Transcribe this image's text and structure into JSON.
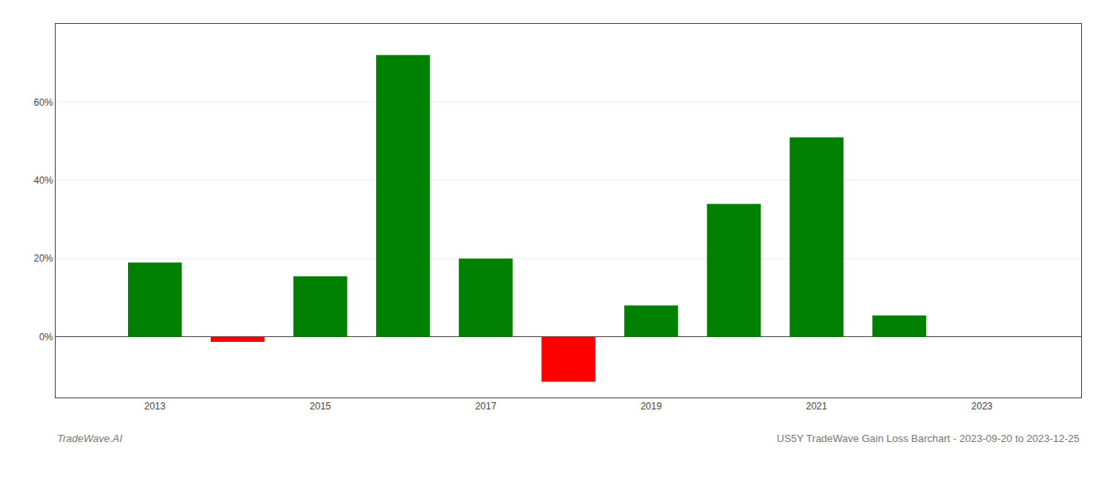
{
  "chart_data": {
    "type": "bar",
    "x": [
      2013,
      2014,
      2015,
      2016,
      2017,
      2018,
      2019,
      2020,
      2021,
      2022
    ],
    "values": [
      0.19,
      -0.013,
      0.155,
      0.72,
      0.2,
      -0.115,
      0.08,
      0.34,
      0.51,
      0.055
    ],
    "colors": [
      "#008000",
      "#ff0000",
      "#008000",
      "#008000",
      "#008000",
      "#ff0000",
      "#008000",
      "#008000",
      "#008000",
      "#008000"
    ],
    "xlim": [
      2011.8,
      2024.2
    ],
    "xticks": [
      2013,
      2015,
      2017,
      2019,
      2021,
      2023
    ],
    "ylim": [
      -0.155,
      0.8
    ],
    "yticks": [
      {
        "value": 0.0,
        "label": "0%"
      },
      {
        "value": 0.2,
        "label": "20%"
      },
      {
        "value": 0.4,
        "label": "40%"
      },
      {
        "value": 0.6,
        "label": "60%"
      }
    ],
    "grid": true,
    "annotations": [
      "TradeWave.AI",
      "US5Y TradeWave Gain Loss Barchart - 2023-09-20 to 2023-12-25"
    ]
  }
}
